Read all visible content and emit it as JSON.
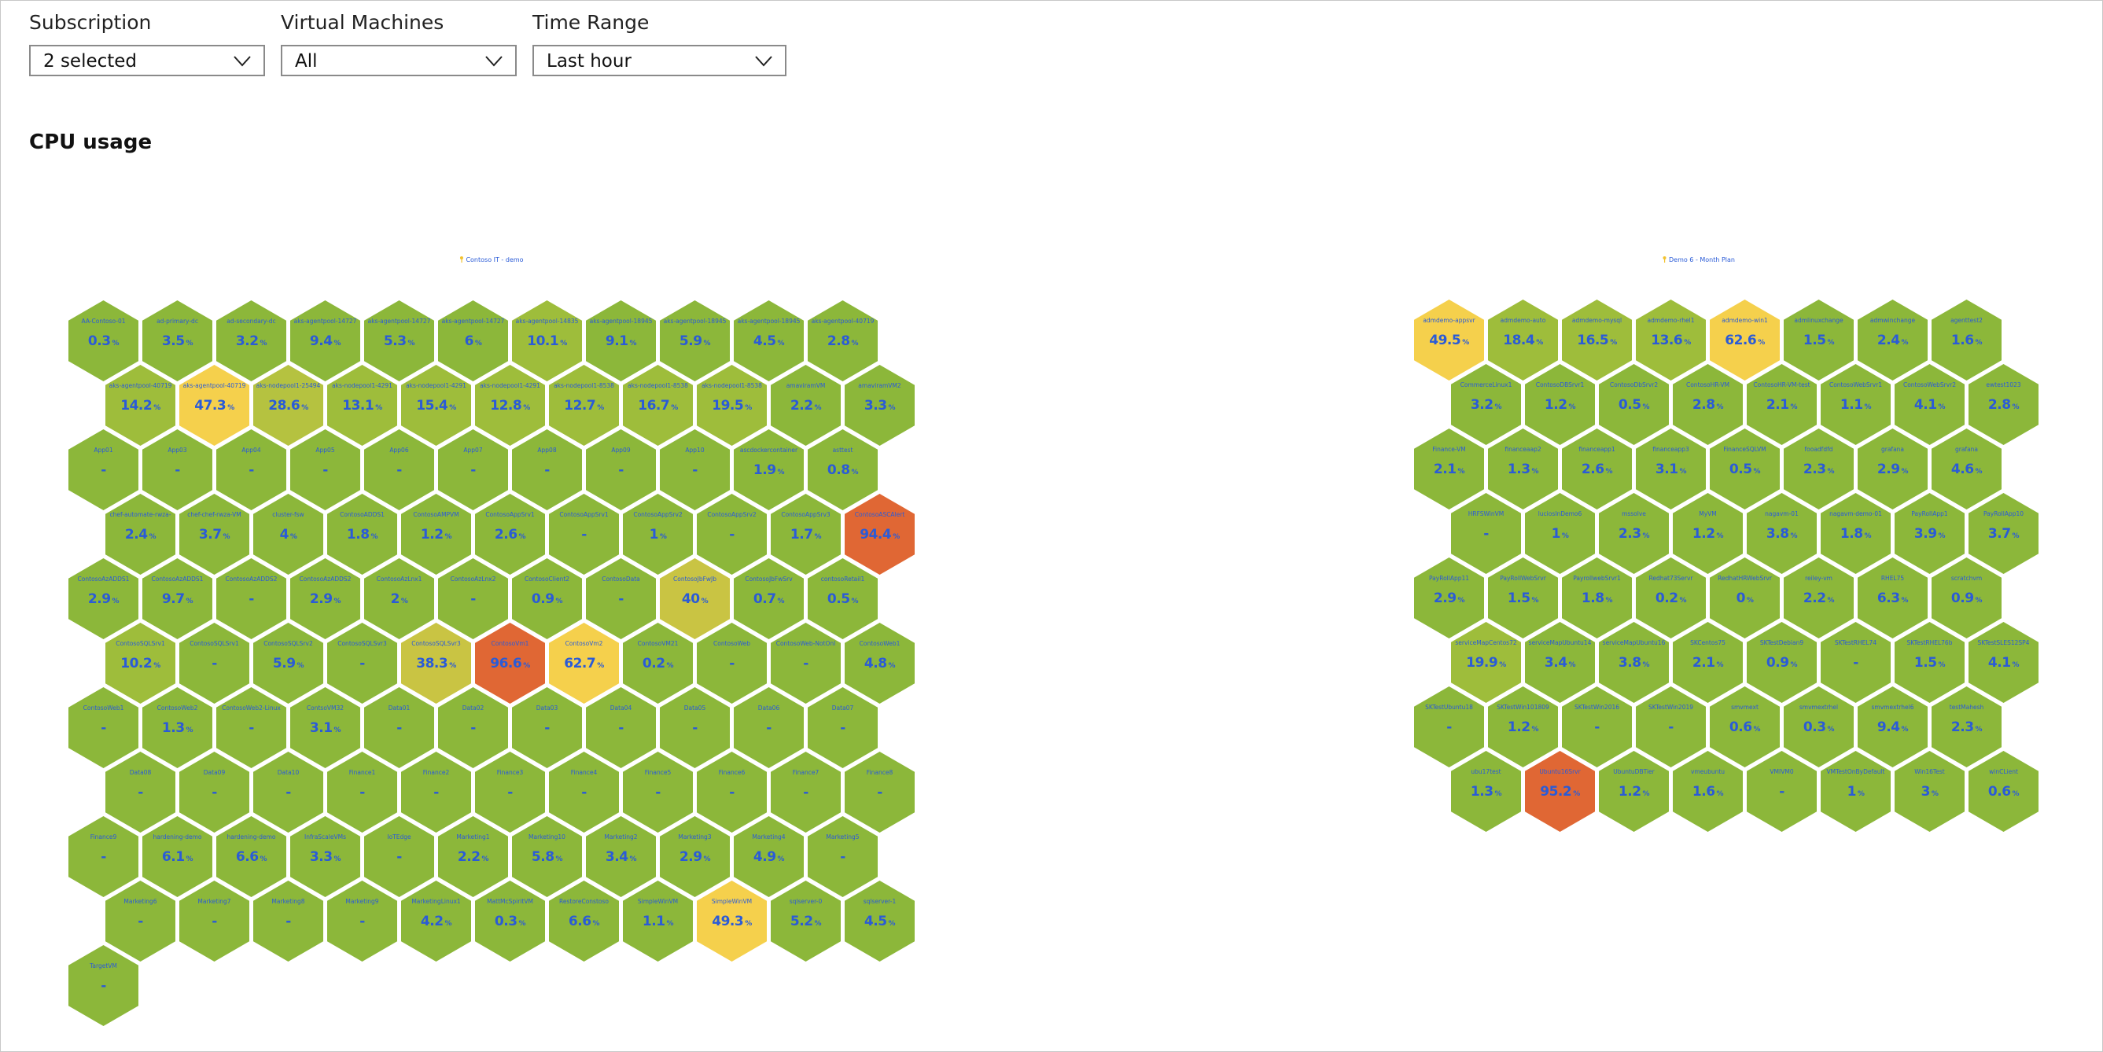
{
  "filters": [
    {
      "label": "Subscription",
      "value": "2 selected"
    },
    {
      "label": "Virtual Machines",
      "value": "All"
    },
    {
      "label": "Time Range",
      "value": "Last hour"
    }
  ],
  "section_title": "CPU usage",
  "chart_data": {
    "type": "heatmap",
    "subtype": "honeycomb",
    "title": "CPU usage",
    "unit": "%",
    "empty_value_text": "-",
    "color_scale": [
      {
        "max": 10,
        "color": "#8cb73a"
      },
      {
        "max": 25,
        "color": "#9ebd3b"
      },
      {
        "max": 35,
        "color": "#b5c240"
      },
      {
        "max": 45,
        "color": "#c9c443"
      },
      {
        "max": 80,
        "color": "#f5d04c"
      },
      {
        "max": 100,
        "color": "#e06734"
      }
    ],
    "text_color": "#2a5bd7",
    "groups": [
      {
        "title": "Contoso IT - demo",
        "icon": "key-icon",
        "vms": [
          {
            "name": "AA-Contoso-01",
            "cpu": 0.3
          },
          {
            "name": "ad-primary-dc",
            "cpu": 3.5
          },
          {
            "name": "ad-secondary-dc",
            "cpu": 3.2
          },
          {
            "name": "aks-agentpool-14727",
            "cpu": 9.4
          },
          {
            "name": "aks-agentpool-14727",
            "cpu": 5.3
          },
          {
            "name": "aks-agentpool-14727",
            "cpu": 6
          },
          {
            "name": "aks-agentpool-14835",
            "cpu": 10.1
          },
          {
            "name": "aks-agentpool-18945",
            "cpu": 9.1
          },
          {
            "name": "aks-agentpool-18945",
            "cpu": 5.9
          },
          {
            "name": "aks-agentpool-18945",
            "cpu": 4.5
          },
          {
            "name": "aks-agentpool-40719",
            "cpu": 2.8
          },
          {
            "name": "aks-agentpool-40719",
            "cpu": 14.2
          },
          {
            "name": "aks-agentpool-40719",
            "cpu": 47.3
          },
          {
            "name": "aks-nodepool1-25494",
            "cpu": 28.6
          },
          {
            "name": "aks-nodepool1-4291",
            "cpu": 13.1
          },
          {
            "name": "aks-nodepool1-4291",
            "cpu": 15.4
          },
          {
            "name": "aks-nodepool1-4291",
            "cpu": 12.8
          },
          {
            "name": "aks-nodepool1-8538",
            "cpu": 12.7
          },
          {
            "name": "aks-nodepool1-8538",
            "cpu": 16.7
          },
          {
            "name": "aks-nodepool1-8538",
            "cpu": 19.5
          },
          {
            "name": "amaviramVM",
            "cpu": 2.2
          },
          {
            "name": "amaviramVM2",
            "cpu": 3.3
          },
          {
            "name": "App01",
            "cpu": null
          },
          {
            "name": "App03",
            "cpu": null
          },
          {
            "name": "App04",
            "cpu": null
          },
          {
            "name": "App05",
            "cpu": null
          },
          {
            "name": "App06",
            "cpu": null
          },
          {
            "name": "App07",
            "cpu": null
          },
          {
            "name": "App08",
            "cpu": null
          },
          {
            "name": "App09",
            "cpu": null
          },
          {
            "name": "App10",
            "cpu": null
          },
          {
            "name": "ascdockercontainer",
            "cpu": 1.9
          },
          {
            "name": "asttest",
            "cpu": 0.8
          },
          {
            "name": "chef-automate-rwza-",
            "cpu": 2.4
          },
          {
            "name": "chef-chef-rwza-VM",
            "cpu": 3.7
          },
          {
            "name": "cluster-fsw",
            "cpu": 4
          },
          {
            "name": "ContosoADDS1",
            "cpu": 1.8
          },
          {
            "name": "ContosoAMPVM",
            "cpu": 1.2
          },
          {
            "name": "ContosoAppSrv1",
            "cpu": 2.6
          },
          {
            "name": "ContosoAppSrv1",
            "cpu": null
          },
          {
            "name": "ContosoAppSrv2",
            "cpu": 1
          },
          {
            "name": "ContosoAppSrv2",
            "cpu": null
          },
          {
            "name": "ContosoAppSrv3",
            "cpu": 1.7
          },
          {
            "name": "ContosoASCAlert",
            "cpu": 94.4
          },
          {
            "name": "ContosoAzADDS1",
            "cpu": 2.9
          },
          {
            "name": "ContosoAzADDS1",
            "cpu": 9.7
          },
          {
            "name": "ContosoAzADDS2",
            "cpu": null
          },
          {
            "name": "ContosoAzADDS2",
            "cpu": 2.9
          },
          {
            "name": "ContosoAzLnx1",
            "cpu": 2
          },
          {
            "name": "ContosoAzLnx2",
            "cpu": null
          },
          {
            "name": "ContosoClient2",
            "cpu": 0.9
          },
          {
            "name": "ContosoData",
            "cpu": null
          },
          {
            "name": "ContosoJbFwJb",
            "cpu": 40
          },
          {
            "name": "ContosoJbFwSrv",
            "cpu": 0.7
          },
          {
            "name": "contosoRetail1",
            "cpu": 0.5
          },
          {
            "name": "ContosoSQLSrv1",
            "cpu": 10.2
          },
          {
            "name": "ContosoSQLSrv1",
            "cpu": null
          },
          {
            "name": "ContosoSQLSrv2",
            "cpu": 5.9
          },
          {
            "name": "ContosoSQLSvr3",
            "cpu": null
          },
          {
            "name": "ContosoSQLSvr3",
            "cpu": 38.3
          },
          {
            "name": "ContosoVm1",
            "cpu": 96.6
          },
          {
            "name": "ContosoVm2",
            "cpu": 62.7
          },
          {
            "name": "ContosoVM21",
            "cpu": 0.2
          },
          {
            "name": "ContosoWeb",
            "cpu": null
          },
          {
            "name": "ContosoWeb-NotOnl",
            "cpu": null
          },
          {
            "name": "ContosoWeb1",
            "cpu": 4.8
          },
          {
            "name": "ContosoWeb1",
            "cpu": null
          },
          {
            "name": "ContosoWeb2",
            "cpu": 1.3
          },
          {
            "name": "ContosoWeb2-Linux",
            "cpu": null
          },
          {
            "name": "ContsoVM32",
            "cpu": 3.1
          },
          {
            "name": "Data01",
            "cpu": null
          },
          {
            "name": "Data02",
            "cpu": null
          },
          {
            "name": "Data03",
            "cpu": null
          },
          {
            "name": "Data04",
            "cpu": null
          },
          {
            "name": "Data05",
            "cpu": null
          },
          {
            "name": "Data06",
            "cpu": null
          },
          {
            "name": "Data07",
            "cpu": null
          },
          {
            "name": "Data08",
            "cpu": null
          },
          {
            "name": "Data09",
            "cpu": null
          },
          {
            "name": "Data10",
            "cpu": null
          },
          {
            "name": "Finance1",
            "cpu": null
          },
          {
            "name": "Finance2",
            "cpu": null
          },
          {
            "name": "Finance3",
            "cpu": null
          },
          {
            "name": "Finance4",
            "cpu": null
          },
          {
            "name": "Finance5",
            "cpu": null
          },
          {
            "name": "Finance6",
            "cpu": null
          },
          {
            "name": "Finance7",
            "cpu": null
          },
          {
            "name": "Finance8",
            "cpu": null
          },
          {
            "name": "Finance9",
            "cpu": null
          },
          {
            "name": "hardening-demo",
            "cpu": 6.1
          },
          {
            "name": "hardening-demo",
            "cpu": 6.6
          },
          {
            "name": "InfraScaleVMs",
            "cpu": 3.3
          },
          {
            "name": "IoTEdge",
            "cpu": null
          },
          {
            "name": "Marketing1",
            "cpu": 2.2
          },
          {
            "name": "Marketing10",
            "cpu": 5.8
          },
          {
            "name": "Marketing2",
            "cpu": 3.4
          },
          {
            "name": "Marketing3",
            "cpu": 2.9
          },
          {
            "name": "Marketing4",
            "cpu": 4.9
          },
          {
            "name": "Marketing5",
            "cpu": null
          },
          {
            "name": "Marketing6",
            "cpu": null
          },
          {
            "name": "Marketing7",
            "cpu": null
          },
          {
            "name": "Marketing8",
            "cpu": null
          },
          {
            "name": "Marketing9",
            "cpu": null
          },
          {
            "name": "MarketingLinux1",
            "cpu": 4.2
          },
          {
            "name": "MattMcSpiritVM",
            "cpu": 0.3
          },
          {
            "name": "RestoreConstoso",
            "cpu": 6.6
          },
          {
            "name": "SimpleWinVM",
            "cpu": 1.1
          },
          {
            "name": "SimpleWinVM",
            "cpu": 49.3
          },
          {
            "name": "sqlserver-0",
            "cpu": 5.2
          },
          {
            "name": "sqlserver-1",
            "cpu": 4.5
          },
          {
            "name": "TargetVM",
            "cpu": null
          }
        ]
      },
      {
        "title": "Demo 6 - Month Plan",
        "icon": "key-icon",
        "vms": [
          {
            "name": "admdemo-appsvr",
            "cpu": 49.5
          },
          {
            "name": "admdemo-auto",
            "cpu": 18.4
          },
          {
            "name": "admdemo-mysql",
            "cpu": 16.5
          },
          {
            "name": "admdemo-rhel1",
            "cpu": 13.6
          },
          {
            "name": "admdemo-win1",
            "cpu": 62.6
          },
          {
            "name": "admlinuxchange",
            "cpu": 1.5
          },
          {
            "name": "admwinchange",
            "cpu": 2.4
          },
          {
            "name": "agenttest2",
            "cpu": 1.6
          },
          {
            "name": "CommerceLinux1",
            "cpu": 3.2
          },
          {
            "name": "ContosoDBSrvr1",
            "cpu": 1.2
          },
          {
            "name": "ContosoDbSrvr2",
            "cpu": 0.5
          },
          {
            "name": "ContosoHR-VM",
            "cpu": 2.8
          },
          {
            "name": "ContosoHR-VM-test",
            "cpu": 2.1
          },
          {
            "name": "ContosoWebSrvr1",
            "cpu": 1.1
          },
          {
            "name": "ContosoWebSrvr2",
            "cpu": 4.1
          },
          {
            "name": "ewtest1023",
            "cpu": 2.8
          },
          {
            "name": "Finance-VM",
            "cpu": 2.1
          },
          {
            "name": "financeaap2",
            "cpu": 1.3
          },
          {
            "name": "financeapp1",
            "cpu": 2.6
          },
          {
            "name": "financeapp3",
            "cpu": 3.1
          },
          {
            "name": "FinanceSQLVM",
            "cpu": 0.5
          },
          {
            "name": "fooadfdfd",
            "cpu": 2.3
          },
          {
            "name": "grafana",
            "cpu": 2.9
          },
          {
            "name": "grafana",
            "cpu": 4.6
          },
          {
            "name": "HRFSWinVM",
            "cpu": null
          },
          {
            "name": "luciosInDemo6",
            "cpu": 1
          },
          {
            "name": "mssolve",
            "cpu": 2.3
          },
          {
            "name": "MyVM",
            "cpu": 1.2
          },
          {
            "name": "nagavm-01",
            "cpu": 3.8
          },
          {
            "name": "nagavm-demo-01",
            "cpu": 1.8
          },
          {
            "name": "PayRollApp1",
            "cpu": 3.9
          },
          {
            "name": "PayRollApp10",
            "cpu": 3.7
          },
          {
            "name": "PayRollApp11",
            "cpu": 2.9
          },
          {
            "name": "PayRollWebSrvr",
            "cpu": 1.5
          },
          {
            "name": "PayrollwebSrvr1",
            "cpu": 1.8
          },
          {
            "name": "Redhat73Servr",
            "cpu": 0.2
          },
          {
            "name": "RedhatHRWebSrvr",
            "cpu": 0
          },
          {
            "name": "reiley-vm",
            "cpu": 2.2
          },
          {
            "name": "RHEL75",
            "cpu": 6.3
          },
          {
            "name": "scratchvm",
            "cpu": 0.9
          },
          {
            "name": "serviceMapCentos72",
            "cpu": 19.9
          },
          {
            "name": "serviceMapUbuntu14",
            "cpu": 3.4
          },
          {
            "name": "serviceMapUbuntu16",
            "cpu": 3.8
          },
          {
            "name": "SKCentos75",
            "cpu": 2.1
          },
          {
            "name": "SKTestDebian9",
            "cpu": 0.9
          },
          {
            "name": "SKTestRHEL74",
            "cpu": null
          },
          {
            "name": "SKTestRHEL76b",
            "cpu": 1.5
          },
          {
            "name": "SKTestSLES12SP4",
            "cpu": 4.1
          },
          {
            "name": "SKTestUbuntu18",
            "cpu": null
          },
          {
            "name": "SKTestWin101809",
            "cpu": 1.2
          },
          {
            "name": "SKTestWin2016",
            "cpu": null
          },
          {
            "name": "SKTestWin2019",
            "cpu": null
          },
          {
            "name": "smvmext",
            "cpu": 0.6
          },
          {
            "name": "smvmextrhel",
            "cpu": 0.3
          },
          {
            "name": "smvmextrhel6",
            "cpu": 9.4
          },
          {
            "name": "testMahesh",
            "cpu": 2.3
          },
          {
            "name": "ubu17test",
            "cpu": 1.3
          },
          {
            "name": "Ubuntu16Srvr",
            "cpu": 95.2
          },
          {
            "name": "UbuntuDBTier",
            "cpu": 1.2
          },
          {
            "name": "vmeubuntu",
            "cpu": 1.6
          },
          {
            "name": "VMIVM0",
            "cpu": null
          },
          {
            "name": "VMTestOnByDefault",
            "cpu": 1
          },
          {
            "name": "Win16Test",
            "cpu": 3
          },
          {
            "name": "winCLient",
            "cpu": 0.6
          }
        ]
      }
    ]
  }
}
